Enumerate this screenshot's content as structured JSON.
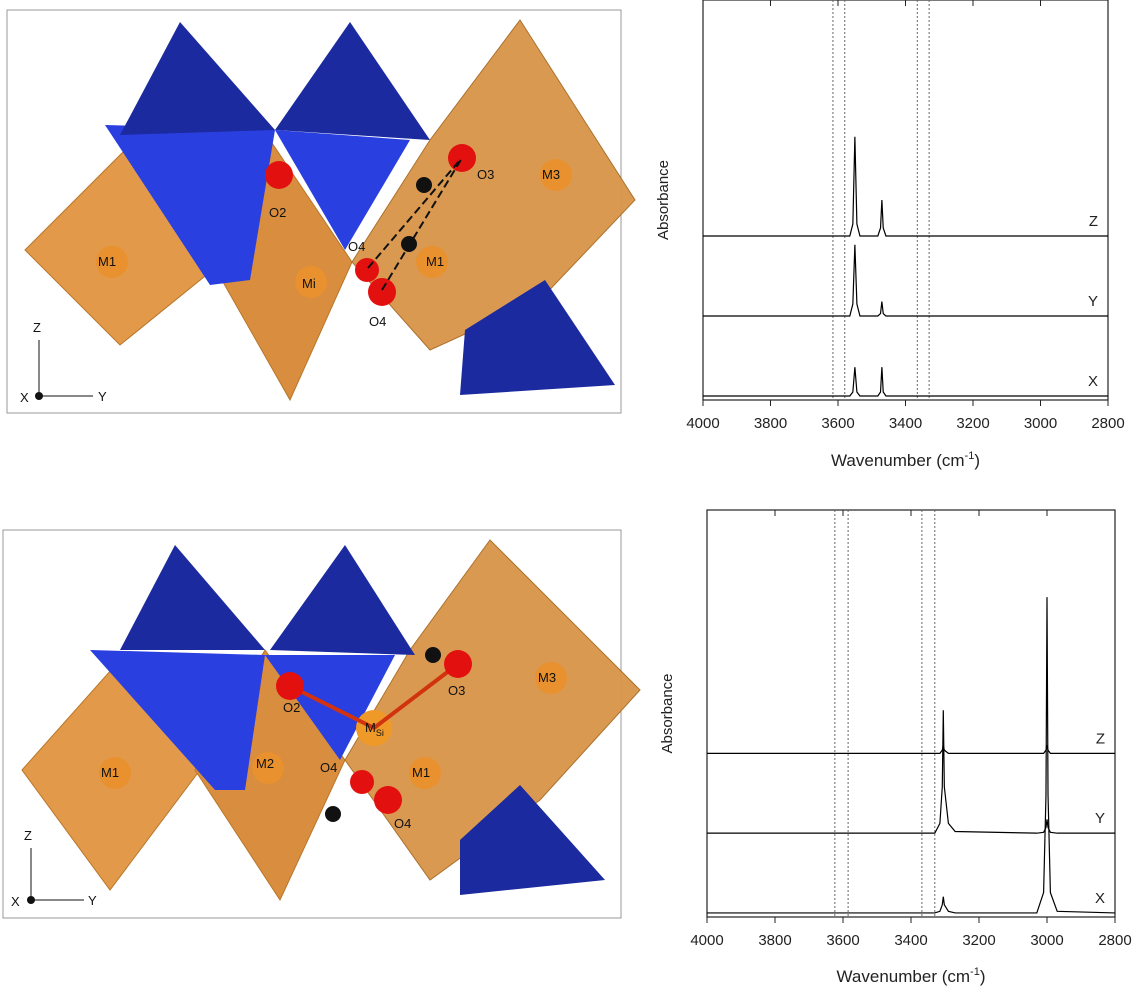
{
  "structures": [
    {
      "atoms": [
        "M1",
        "O2",
        "Mi",
        "O4",
        "O4",
        "M1",
        "O3",
        "M3"
      ],
      "axes": [
        "Z",
        "X",
        "Y"
      ]
    },
    {
      "atoms": [
        "M1",
        "O2",
        "M2",
        "M",
        "O4",
        "O4",
        "M1",
        "O3",
        "M3"
      ],
      "m_subscript": "Si",
      "axes": [
        "Z",
        "X",
        "Y"
      ]
    }
  ],
  "chart_data": [
    {
      "type": "line",
      "y_label": "Absorbance",
      "x_label": [
        "Wavenumber (cm",
        "-1",
        ")"
      ],
      "xlim": [
        4000,
        2800
      ],
      "xticks": [
        4000,
        3800,
        3600,
        3400,
        3200,
        3000,
        2800
      ],
      "ylim": [
        0,
        5
      ],
      "reference_lines": [
        3615,
        3580,
        3365,
        3330
      ],
      "series": [
        {
          "name": "Z",
          "color": "#000000",
          "x": [
            4000,
            3565,
            3556,
            3550,
            3544,
            3535,
            3482,
            3474,
            3470,
            3466,
            3458,
            2800
          ],
          "values": [
            2.05,
            2.05,
            2.2,
            3.29,
            2.2,
            2.05,
            2.05,
            2.15,
            2.5,
            2.15,
            2.05,
            2.05
          ]
        },
        {
          "name": "Y",
          "color": "#000000",
          "x": [
            4000,
            3565,
            3556,
            3550,
            3544,
            3535,
            3482,
            3474,
            3470,
            3466,
            3458,
            2800
          ],
          "values": [
            1.05,
            1.05,
            1.2,
            1.94,
            1.2,
            1.05,
            1.05,
            1.08,
            1.23,
            1.08,
            1.05,
            1.05
          ]
        },
        {
          "name": "X",
          "color": "#000000",
          "x": [
            4000,
            3565,
            3556,
            3550,
            3544,
            3535,
            3482,
            3474,
            3470,
            3466,
            3458,
            2800
          ],
          "values": [
            0.05,
            0.05,
            0.1,
            0.41,
            0.1,
            0.05,
            0.05,
            0.1,
            0.41,
            0.1,
            0.05,
            0.05
          ]
        }
      ]
    },
    {
      "type": "line",
      "y_label": "Absorbance",
      "x_label": [
        "Wavenumber (cm",
        "-1",
        ")"
      ],
      "xlim": [
        4000,
        2800
      ],
      "xticks": [
        4000,
        3800,
        3600,
        3400,
        3200,
        3000,
        2800
      ],
      "ylim": [
        0,
        5
      ],
      "reference_lines": [
        3624,
        3585,
        3368,
        3330
      ],
      "series": [
        {
          "name": "Z",
          "color": "#000000",
          "x": [
            4000,
            3330,
            3315,
            3308,
            3305,
            3302,
            3290,
            3270,
            3030,
            3010,
            3003,
            3000,
            2997,
            2990,
            2970,
            2800
          ],
          "values": [
            2.01,
            2.01,
            2.01,
            2.05,
            2.11,
            2.05,
            2.01,
            2.01,
            2.01,
            2.01,
            2.05,
            2.11,
            2.05,
            2.01,
            2.01,
            2.01
          ]
        },
        {
          "name": "Y",
          "color": "#000000",
          "x": [
            4000,
            3330,
            3315,
            3308,
            3305,
            3302,
            3290,
            3270,
            3030,
            3010,
            3003,
            3000,
            2997,
            2990,
            2970,
            2800
          ],
          "values": [
            1.03,
            1.03,
            1.15,
            1.6,
            2.54,
            1.6,
            1.15,
            1.05,
            1.03,
            1.04,
            1.1,
            1.2,
            1.1,
            1.04,
            1.03,
            1.03
          ]
        },
        {
          "name": "X",
          "color": "#000000",
          "x": [
            4000,
            3330,
            3315,
            3308,
            3305,
            3302,
            3290,
            3270,
            3030,
            3010,
            3003,
            3000,
            2997,
            2990,
            2970,
            2800
          ],
          "values": [
            0.05,
            0.05,
            0.07,
            0.15,
            0.25,
            0.15,
            0.07,
            0.05,
            0.05,
            0.3,
            1.5,
            3.93,
            1.5,
            0.3,
            0.07,
            0.05
          ]
        }
      ]
    }
  ]
}
